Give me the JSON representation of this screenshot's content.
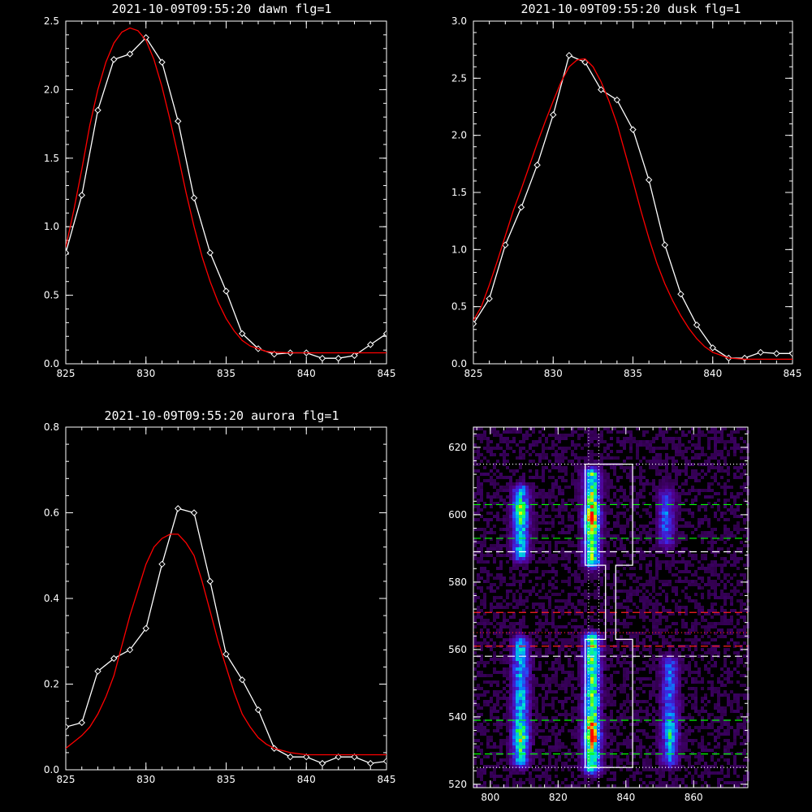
{
  "colors": {
    "background": "#000000",
    "axes": "#ffffff",
    "observed": "#ffffff",
    "fit": "#ff0000",
    "box": "#ffffff",
    "green_line": "#00ff00",
    "red_line": "#ff2020",
    "white_dash": "#ffffff"
  },
  "chart_data": [
    {
      "id": "dawn",
      "type": "line",
      "title": "2021-10-09T09:55:20 dawn flg=1",
      "xlim": [
        825,
        845
      ],
      "ylim": [
        0,
        2.5
      ],
      "x_ticks": [
        825,
        830,
        835,
        840,
        845
      ],
      "x_tick_labels": [
        "825",
        "830",
        "835",
        "840",
        "845"
      ],
      "y_ticks": [
        0,
        0.5,
        1,
        1.5,
        2,
        2.5
      ],
      "y_tick_labels": [
        "0.0",
        "0.5",
        "1.0",
        "1.5",
        "2.0",
        "2.5"
      ],
      "series": [
        {
          "role": "observed",
          "marker": "diamond",
          "x": [
            825,
            826,
            827,
            828,
            829,
            830,
            831,
            832,
            833,
            834,
            835,
            836,
            837,
            838,
            839,
            840,
            841,
            842,
            843,
            844,
            845
          ],
          "y": [
            0.81,
            1.23,
            1.85,
            2.22,
            2.26,
            2.38,
            2.2,
            1.77,
            1.21,
            0.81,
            0.53,
            0.22,
            0.11,
            0.07,
            0.08,
            0.08,
            0.04,
            0.04,
            0.06,
            0.14,
            0.22
          ]
        },
        {
          "role": "fit",
          "x": [
            825,
            825.5,
            826,
            826.5,
            827,
            827.5,
            828,
            828.5,
            829,
            829.5,
            830,
            830.5,
            831,
            831.5,
            832,
            832.5,
            833,
            833.5,
            834,
            834.5,
            835,
            835.5,
            836,
            836.5,
            837,
            837.5,
            838,
            839,
            840,
            841,
            842,
            843,
            844,
            845
          ],
          "y": [
            0.85,
            1.12,
            1.42,
            1.74,
            2.0,
            2.2,
            2.34,
            2.42,
            2.45,
            2.43,
            2.36,
            2.22,
            2.02,
            1.78,
            1.52,
            1.25,
            1.0,
            0.78,
            0.6,
            0.45,
            0.33,
            0.24,
            0.17,
            0.13,
            0.11,
            0.09,
            0.085,
            0.08,
            0.08,
            0.08,
            0.08,
            0.08,
            0.08,
            0.08
          ]
        }
      ]
    },
    {
      "id": "dusk",
      "type": "line",
      "title": "2021-10-09T09:55:20 dusk flg=1",
      "xlim": [
        825,
        845
      ],
      "ylim": [
        0,
        3.0
      ],
      "x_ticks": [
        825,
        830,
        835,
        840,
        845
      ],
      "x_tick_labels": [
        "825",
        "830",
        "835",
        "840",
        "845"
      ],
      "y_ticks": [
        0,
        0.5,
        1,
        1.5,
        2,
        2.5,
        3
      ],
      "y_tick_labels": [
        "0.0",
        "0.5",
        "1.0",
        "1.5",
        "2.0",
        "2.5",
        "3.0"
      ],
      "series": [
        {
          "role": "observed",
          "marker": "diamond",
          "x": [
            825,
            826,
            827,
            828,
            829,
            830,
            831,
            832,
            833,
            834,
            835,
            836,
            837,
            838,
            839,
            840,
            841,
            842,
            843,
            844,
            845
          ],
          "y": [
            0.35,
            0.57,
            1.04,
            1.37,
            1.74,
            2.18,
            2.7,
            2.64,
            2.4,
            2.31,
            2.05,
            1.61,
            1.04,
            0.61,
            0.34,
            0.14,
            0.05,
            0.05,
            0.1,
            0.09,
            0.09
          ]
        },
        {
          "role": "fit",
          "x": [
            825,
            825.5,
            826,
            826.5,
            827,
            827.5,
            828,
            828.5,
            829,
            829.5,
            830,
            830.5,
            831,
            831.5,
            832,
            832.5,
            833,
            833.5,
            834,
            834.5,
            835,
            835.5,
            836,
            836.5,
            837,
            837.5,
            838,
            838.5,
            839,
            839.5,
            840,
            841,
            842,
            843,
            844,
            845
          ],
          "y": [
            0.38,
            0.5,
            0.69,
            0.9,
            1.12,
            1.34,
            1.53,
            1.73,
            1.93,
            2.12,
            2.3,
            2.47,
            2.6,
            2.66,
            2.67,
            2.6,
            2.47,
            2.3,
            2.1,
            1.85,
            1.6,
            1.34,
            1.1,
            0.88,
            0.7,
            0.55,
            0.42,
            0.31,
            0.22,
            0.15,
            0.1,
            0.05,
            0.04,
            0.04,
            0.04,
            0.04
          ]
        }
      ]
    },
    {
      "id": "aurora",
      "type": "line",
      "title": "2021-10-09T09:55:20 aurora flg=1",
      "xlim": [
        825,
        845
      ],
      "ylim": [
        0,
        0.8
      ],
      "x_ticks": [
        825,
        830,
        835,
        840,
        845
      ],
      "x_tick_labels": [
        "825",
        "830",
        "835",
        "840",
        "845"
      ],
      "y_ticks": [
        0,
        0.2,
        0.4,
        0.6,
        0.8
      ],
      "y_tick_labels": [
        "0.0",
        "0.2",
        "0.4",
        "0.6",
        "0.8"
      ],
      "series": [
        {
          "role": "observed",
          "marker": "diamond",
          "x": [
            825,
            826,
            827,
            828,
            829,
            830,
            831,
            832,
            833,
            834,
            835,
            836,
            837,
            838,
            839,
            840,
            841,
            842,
            843,
            844,
            845
          ],
          "y": [
            0.1,
            0.11,
            0.23,
            0.26,
            0.28,
            0.33,
            0.48,
            0.61,
            0.6,
            0.44,
            0.27,
            0.21,
            0.14,
            0.05,
            0.03,
            0.03,
            0.015,
            0.03,
            0.03,
            0.015,
            0.02
          ]
        },
        {
          "role": "fit",
          "x": [
            825,
            825.5,
            826,
            826.5,
            827,
            827.5,
            828,
            828.5,
            829,
            829.5,
            830,
            830.5,
            831,
            831.5,
            832,
            832.5,
            833,
            833.5,
            834,
            834.5,
            835,
            835.5,
            836,
            836.5,
            837,
            837.5,
            838,
            838.5,
            839,
            840,
            841,
            842,
            843,
            844,
            845
          ],
          "y": [
            0.05,
            0.065,
            0.08,
            0.1,
            0.13,
            0.17,
            0.22,
            0.29,
            0.36,
            0.42,
            0.48,
            0.52,
            0.54,
            0.55,
            0.55,
            0.53,
            0.5,
            0.44,
            0.37,
            0.3,
            0.24,
            0.18,
            0.13,
            0.1,
            0.075,
            0.06,
            0.05,
            0.045,
            0.04,
            0.035,
            0.035,
            0.035,
            0.035,
            0.035,
            0.035
          ]
        }
      ]
    },
    {
      "id": "image",
      "type": "heatmap",
      "xlim": [
        795,
        876
      ],
      "ylim": [
        519,
        626
      ],
      "x_ticks": [
        800,
        820,
        840,
        860
      ],
      "x_tick_labels": [
        "800",
        "820",
        "840",
        "860"
      ],
      "y_ticks": [
        520,
        540,
        560,
        580,
        600,
        620
      ],
      "y_tick_labels": [
        "520",
        "540",
        "560",
        "580",
        "600",
        "620"
      ],
      "emission_columns": [
        {
          "x_center": 809,
          "y_from": 527,
          "y_to": 562,
          "peak_y": 534,
          "strength": 0.75
        },
        {
          "x_center": 809,
          "y_from": 588,
          "y_to": 607,
          "peak_y": 600,
          "strength": 0.7
        },
        {
          "x_center": 830,
          "y_from": 525,
          "y_to": 563,
          "peak_y": 535,
          "strength": 1.0
        },
        {
          "x_center": 830,
          "y_from": 586,
          "y_to": 612,
          "peak_y": 599,
          "strength": 0.95
        },
        {
          "x_center": 853,
          "y_from": 527,
          "y_to": 556,
          "peak_y": 535,
          "strength": 0.55
        },
        {
          "x_center": 852,
          "y_from": 592,
          "y_to": 606,
          "peak_y": 598,
          "strength": 0.4
        }
      ],
      "box_upper": {
        "x": [
          828,
          842
        ],
        "y": [
          585,
          615
        ]
      },
      "box_lower": {
        "x": [
          828,
          842
        ],
        "y": [
          525,
          563
        ]
      },
      "box_connector": {
        "x": [
          834,
          837
        ],
        "y": [
          563,
          585
        ]
      },
      "vertical_dotted_x": [
        829,
        832
      ],
      "green_dashed_y": [
        603,
        593,
        539,
        529
      ],
      "white_dashed_y": [
        589,
        558
      ],
      "red_dashed_y": [
        571,
        561
      ],
      "white_dotted_y": [
        615,
        525
      ],
      "red_dotted_y": [
        565
      ]
    }
  ]
}
